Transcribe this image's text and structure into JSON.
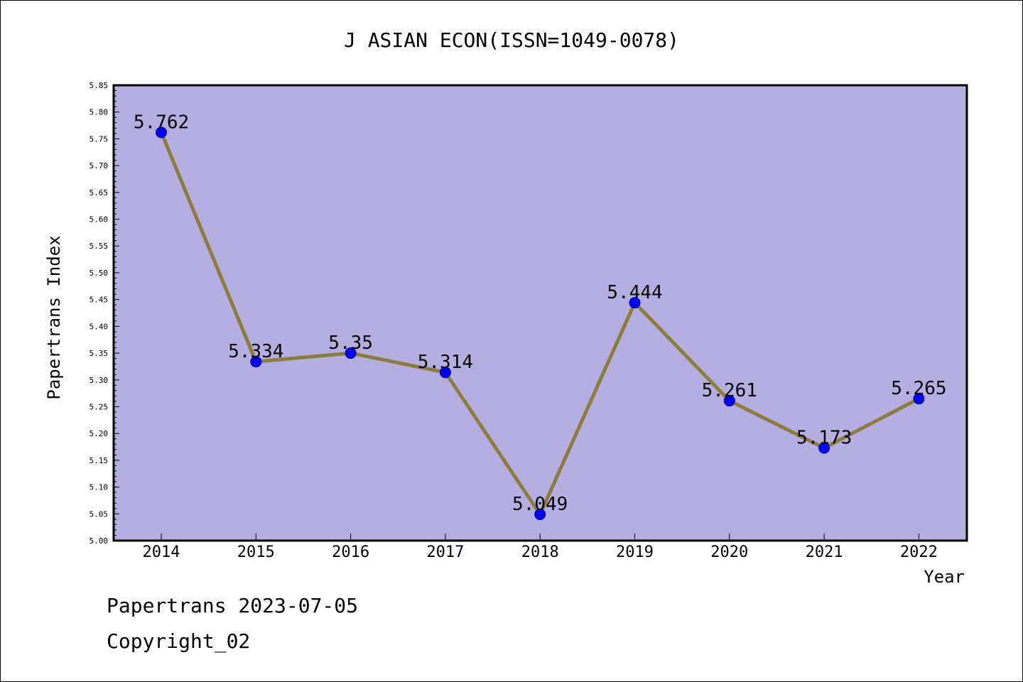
{
  "chart_data": {
    "type": "line",
    "title": "J ASIAN ECON(ISSN=1049-0078)",
    "xlabel": "Year",
    "ylabel": "Papertrans Index",
    "categories": [
      "2014",
      "2015",
      "2016",
      "2017",
      "2018",
      "2019",
      "2020",
      "2021",
      "2022"
    ],
    "series": [
      {
        "values": [
          5.762,
          5.334,
          5.35,
          5.314,
          5.049,
          5.444,
          5.261,
          5.173,
          5.265
        ]
      }
    ],
    "data_labels": [
      "5.762",
      "5.334",
      "5.35",
      "5.314",
      "5.049",
      "5.444",
      "5.261",
      "5.173",
      "5.265"
    ],
    "ylim": [
      5.0,
      5.85
    ],
    "yticks": [
      "5.00",
      "5.05",
      "5.10",
      "5.15",
      "5.20",
      "5.25",
      "5.30",
      "5.35",
      "5.40",
      "5.45",
      "5.50",
      "5.55",
      "5.60",
      "5.65",
      "5.70",
      "5.75",
      "5.80",
      "5.85"
    ],
    "grid": false,
    "legend": "none",
    "colors": {
      "plot_background": "#b5aee0",
      "line": "#8b7d3c",
      "marker": "#0000ff",
      "marker_edge": "#00008b"
    }
  },
  "footer": {
    "line1": "Papertrans 2023-07-05",
    "line2": "Copyright_02"
  }
}
